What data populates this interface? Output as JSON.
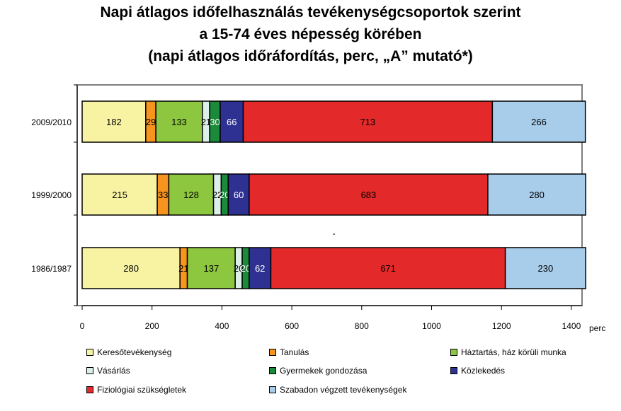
{
  "chart_data": {
    "type": "bar",
    "orientation": "horizontal",
    "stacked": true,
    "title": [
      "Napi átlagos időfelhasználás tevékenységcsoportok szerint",
      "a 15-74 éves népesség körében",
      "(napi átlagos időráfordítás, perc, „A” mutató*)"
    ],
    "xlabel": "perc",
    "xlim": [
      0,
      1440
    ],
    "xticks": [
      "0",
      "200",
      "400",
      "600",
      "800",
      "1000",
      "1200",
      "1400"
    ],
    "categories": [
      "2009/2010",
      "1999/2000",
      "1986/1987"
    ],
    "grid": false,
    "legend_position": "bottom",
    "series": [
      {
        "name": "Keresőtevékenység",
        "color": "#f8f3a3",
        "values": [
          182,
          215,
          280
        ]
      },
      {
        "name": "Tanulás",
        "color": "#f7941d",
        "values": [
          29,
          33,
          21
        ]
      },
      {
        "name": "Háztartás, ház körüli munka",
        "color": "#8dc63f",
        "values": [
          133,
          128,
          137
        ]
      },
      {
        "name": "Vásárlás",
        "color": "#dcefe9",
        "values": [
          21,
          22,
          20
        ]
      },
      {
        "name": "Gyermekek gondozása",
        "color": "#1b8a3a",
        "values": [
          30,
          20,
          20
        ]
      },
      {
        "name": "Közlekedés",
        "color": "#2e3192",
        "values": [
          66,
          60,
          62
        ]
      },
      {
        "name": "Fiziológiai szükségletek",
        "color": "#e32929",
        "values": [
          713,
          683,
          671
        ]
      },
      {
        "name": "Szabadon végzett tevékenységek",
        "color": "#a8cdeb",
        "values": [
          266,
          280,
          230
        ]
      }
    ]
  }
}
